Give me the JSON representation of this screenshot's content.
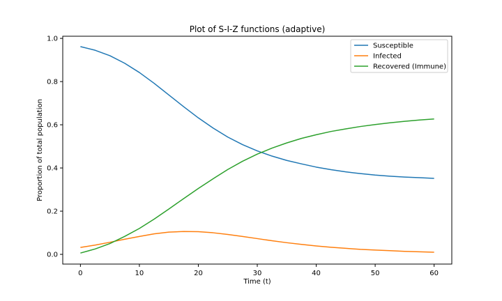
{
  "chart_data": {
    "type": "line",
    "title": "Plot of S-I-Z functions (adaptive)",
    "xlabel": "Time (t)",
    "ylabel": "Proportion of total population",
    "xlim": [
      -3,
      63
    ],
    "ylim": [
      -0.045,
      1.01
    ],
    "xticks": [
      0,
      10,
      20,
      30,
      40,
      50,
      60
    ],
    "yticks": [
      0.0,
      0.2,
      0.4,
      0.6,
      0.8,
      1.0
    ],
    "xtick_labels": [
      "0",
      "10",
      "20",
      "30",
      "40",
      "50",
      "60"
    ],
    "ytick_labels": [
      "0.0",
      "0.2",
      "0.4",
      "0.6",
      "0.8",
      "1.0"
    ],
    "grid": false,
    "legend_position": "top-right",
    "x": [
      0,
      2.5,
      5,
      7.5,
      10,
      12.5,
      15,
      17.5,
      20,
      22.5,
      25,
      27.5,
      30,
      32.5,
      35,
      37.5,
      40,
      42.5,
      45,
      47.5,
      50,
      52.5,
      55,
      57.5,
      60
    ],
    "series": [
      {
        "name": "Susceptible",
        "color": "#1f77b4",
        "values": [
          0.962,
          0.945,
          0.92,
          0.885,
          0.842,
          0.792,
          0.738,
          0.684,
          0.632,
          0.585,
          0.543,
          0.508,
          0.479,
          0.455,
          0.435,
          0.419,
          0.404,
          0.392,
          0.382,
          0.374,
          0.367,
          0.362,
          0.358,
          0.355,
          0.352
        ]
      },
      {
        "name": "Infected",
        "color": "#ff7f0e",
        "values": [
          0.032,
          0.043,
          0.056,
          0.07,
          0.083,
          0.095,
          0.103,
          0.106,
          0.105,
          0.1,
          0.092,
          0.083,
          0.073,
          0.063,
          0.054,
          0.046,
          0.039,
          0.033,
          0.028,
          0.023,
          0.02,
          0.017,
          0.014,
          0.012,
          0.01
        ]
      },
      {
        "name": "Recovered (Immune)",
        "color": "#2ca02c",
        "values": [
          0.006,
          0.025,
          0.05,
          0.083,
          0.12,
          0.163,
          0.21,
          0.258,
          0.305,
          0.35,
          0.393,
          0.431,
          0.464,
          0.492,
          0.516,
          0.537,
          0.554,
          0.569,
          0.581,
          0.592,
          0.601,
          0.609,
          0.616,
          0.622,
          0.627
        ]
      }
    ]
  }
}
